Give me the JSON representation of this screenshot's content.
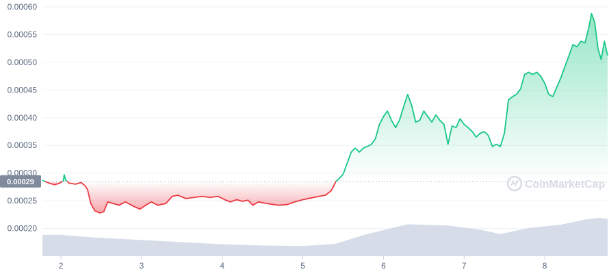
{
  "chart_data": {
    "type": "line",
    "title": "",
    "xlabel": "",
    "ylabel": "",
    "ylim": [
      0.00015,
      0.0006
    ],
    "xlim": [
      1.77,
      8.78
    ],
    "y_ticks": [
      "0.00060",
      "0.00055",
      "0.00050",
      "0.00045",
      "0.00040",
      "0.00035",
      "0.00030",
      "0.00025",
      "0.00020"
    ],
    "x_ticks": [
      "2",
      "3",
      "4",
      "5",
      "6",
      "7",
      "8"
    ],
    "reference_value": 0.000285,
    "reference_label": "0.00029",
    "grid": true,
    "series": [
      {
        "values": [
          [
            1.77,
            0.000287
          ],
          [
            1.85,
            0.000282
          ],
          [
            1.92,
            0.000279
          ],
          [
            1.97,
            0.000281
          ],
          [
            2.03,
            0.000286
          ],
          [
            2.04,
            0.000297
          ],
          [
            2.06,
            0.000287
          ],
          [
            2.1,
            0.000282
          ],
          [
            2.18,
            0.00028
          ],
          [
            2.25,
            0.000283
          ],
          [
            2.3,
            0.000277
          ],
          [
            2.33,
            0.00027
          ],
          [
            2.37,
            0.000245
          ],
          [
            2.42,
            0.000232
          ],
          [
            2.48,
            0.000228
          ],
          [
            2.53,
            0.00023
          ],
          [
            2.58,
            0.000248
          ],
          [
            2.65,
            0.000245
          ],
          [
            2.72,
            0.000242
          ],
          [
            2.8,
            0.000248
          ],
          [
            2.9,
            0.00024
          ],
          [
            2.98,
            0.000235
          ],
          [
            3.05,
            0.000242
          ],
          [
            3.12,
            0.000248
          ],
          [
            3.2,
            0.000242
          ],
          [
            3.3,
            0.000245
          ],
          [
            3.38,
            0.000258
          ],
          [
            3.45,
            0.00026
          ],
          [
            3.55,
            0.000254
          ],
          [
            3.65,
            0.000256
          ],
          [
            3.75,
            0.000258
          ],
          [
            3.85,
            0.000256
          ],
          [
            3.95,
            0.000258
          ],
          [
            4.03,
            0.000252
          ],
          [
            4.1,
            0.000248
          ],
          [
            4.18,
            0.000252
          ],
          [
            4.25,
            0.000249
          ],
          [
            4.32,
            0.000251
          ],
          [
            4.38,
            0.000242
          ],
          [
            4.45,
            0.000248
          ],
          [
            4.52,
            0.000246
          ],
          [
            4.6,
            0.000244
          ],
          [
            4.7,
            0.000242
          ],
          [
            4.8,
            0.000243
          ],
          [
            4.9,
            0.000248
          ],
          [
            5.0,
            0.000252
          ],
          [
            5.1,
            0.000255
          ],
          [
            5.2,
            0.000258
          ],
          [
            5.28,
            0.00026
          ],
          [
            5.35,
            0.000268
          ],
          [
            5.38,
            0.000276
          ],
          [
            5.41,
            0.000285
          ],
          [
            5.45,
            0.00029
          ],
          [
            5.5,
            0.000298
          ],
          [
            5.55,
            0.000318
          ],
          [
            5.6,
            0.000338
          ],
          [
            5.65,
            0.000345
          ],
          [
            5.7,
            0.000338
          ],
          [
            5.75,
            0.000345
          ],
          [
            5.8,
            0.000348
          ],
          [
            5.85,
            0.000352
          ],
          [
            5.9,
            0.000362
          ],
          [
            5.95,
            0.000388
          ],
          [
            6.0,
            0.000402
          ],
          [
            6.05,
            0.000412
          ],
          [
            6.1,
            0.000395
          ],
          [
            6.15,
            0.000382
          ],
          [
            6.2,
            0.000396
          ],
          [
            6.25,
            0.00042
          ],
          [
            6.3,
            0.000442
          ],
          [
            6.35,
            0.000422
          ],
          [
            6.4,
            0.000392
          ],
          [
            6.45,
            0.000395
          ],
          [
            6.5,
            0.000412
          ],
          [
            6.55,
            0.000402
          ],
          [
            6.6,
            0.000392
          ],
          [
            6.65,
            0.000405
          ],
          [
            6.7,
            0.000395
          ],
          [
            6.75,
            0.000388
          ],
          [
            6.8,
            0.000352
          ],
          [
            6.85,
            0.000385
          ],
          [
            6.9,
            0.000382
          ],
          [
            6.95,
            0.000398
          ],
          [
            7.0,
            0.000388
          ],
          [
            7.05,
            0.000382
          ],
          [
            7.1,
            0.000375
          ],
          [
            7.15,
            0.000365
          ],
          [
            7.2,
            0.000372
          ],
          [
            7.25,
            0.000375
          ],
          [
            7.3,
            0.000368
          ],
          [
            7.35,
            0.000348
          ],
          [
            7.4,
            0.000352
          ],
          [
            7.45,
            0.000348
          ],
          [
            7.5,
            0.000372
          ],
          [
            7.55,
            0.000432
          ],
          [
            7.6,
            0.000438
          ],
          [
            7.65,
            0.000442
          ],
          [
            7.7,
            0.000452
          ],
          [
            7.75,
            0.000478
          ],
          [
            7.8,
            0.000482
          ],
          [
            7.85,
            0.000478
          ],
          [
            7.9,
            0.000482
          ],
          [
            7.95,
            0.000475
          ],
          [
            8.0,
            0.000462
          ],
          [
            8.05,
            0.000442
          ],
          [
            8.1,
            0.000438
          ],
          [
            8.15,
            0.000455
          ],
          [
            8.2,
            0.000472
          ],
          [
            8.25,
            0.000492
          ],
          [
            8.3,
            0.000512
          ],
          [
            8.35,
            0.000532
          ],
          [
            8.4,
            0.000528
          ],
          [
            8.45,
            0.000538
          ],
          [
            8.5,
            0.000535
          ],
          [
            8.55,
            0.000565
          ],
          [
            8.58,
            0.000588
          ],
          [
            8.62,
            0.000572
          ],
          [
            8.66,
            0.000525
          ],
          [
            8.7,
            0.000505
          ],
          [
            8.74,
            0.000538
          ],
          [
            8.78,
            0.000512
          ]
        ]
      }
    ],
    "volume_relative": [
      [
        1.77,
        0.5
      ],
      [
        2.0,
        0.5
      ],
      [
        2.4,
        0.44
      ],
      [
        3.0,
        0.38
      ],
      [
        3.5,
        0.33
      ],
      [
        4.0,
        0.28
      ],
      [
        4.5,
        0.25
      ],
      [
        5.0,
        0.24
      ],
      [
        5.4,
        0.29
      ],
      [
        5.8,
        0.52
      ],
      [
        6.3,
        0.75
      ],
      [
        6.8,
        0.72
      ],
      [
        7.2,
        0.62
      ],
      [
        7.45,
        0.52
      ],
      [
        7.8,
        0.66
      ],
      [
        8.2,
        0.74
      ],
      [
        8.5,
        0.86
      ],
      [
        8.65,
        0.9
      ],
      [
        8.78,
        0.88
      ]
    ],
    "colors": {
      "up": "#16c784",
      "down": "#ea3943",
      "volume": "#cfd6e4",
      "grid": "#eff2f5",
      "ref_badge": "#808a9d"
    }
  },
  "watermark": {
    "text": "CoinMarketCap"
  }
}
